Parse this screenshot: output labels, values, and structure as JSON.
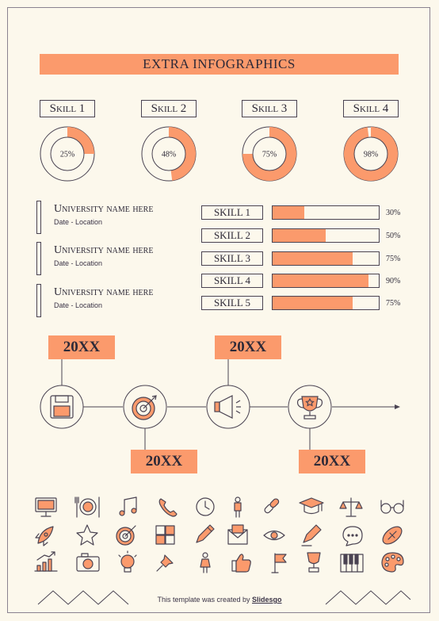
{
  "title": "EXTRA INFOGRAPHICS",
  "accent_color": "#fb9a6c",
  "line_color": "#4a4352",
  "skills": [
    {
      "label": "Skill 1",
      "percent": 25,
      "percent_text": "25%"
    },
    {
      "label": "Skill 2",
      "percent": 48,
      "percent_text": "48%"
    },
    {
      "label": "Skill 3",
      "percent": 75,
      "percent_text": "75%"
    },
    {
      "label": "Skill 4",
      "percent": 98,
      "percent_text": "98%"
    }
  ],
  "education": [
    {
      "name": "University name here",
      "meta": "Date - Location"
    },
    {
      "name": "University name here",
      "meta": "Date - Location"
    },
    {
      "name": "University name here",
      "meta": "Date - Location"
    }
  ],
  "skill_bars": [
    {
      "label": "SKILL 1",
      "percent": 30,
      "percent_text": "30%"
    },
    {
      "label": "SKILL 2",
      "percent": 50,
      "percent_text": "50%"
    },
    {
      "label": "SKILL 3",
      "percent": 75,
      "percent_text": "75%"
    },
    {
      "label": "SKILL 4",
      "percent": 90,
      "percent_text": "90%"
    },
    {
      "label": "SKILL 5",
      "percent": 75,
      "percent_text": "75%"
    }
  ],
  "timeline": [
    {
      "year": "20XX",
      "icon": "floppy-disk-icon"
    },
    {
      "year": "20XX",
      "icon": "target-icon"
    },
    {
      "year": "20XX",
      "icon": "megaphone-icon"
    },
    {
      "year": "20XX",
      "icon": "trophy-icon"
    }
  ],
  "icons": [
    "monitor-icon",
    "cutlery-icon",
    "music-note-icon",
    "phone-icon",
    "clock-icon",
    "person-icon",
    "link-icon",
    "graduation-cap-icon",
    "scale-icon",
    "glasses-icon",
    "rocket-icon",
    "star-icon",
    "target-icon",
    "puzzle-icon",
    "pencil-icon",
    "mail-icon",
    "eye-icon",
    "marker-icon",
    "chat-bubble-icon",
    "football-icon",
    "chart-icon",
    "camera-icon",
    "lightbulb-icon",
    "pushpin-icon",
    "woman-icon",
    "thumbs-up-icon",
    "flag-icon",
    "trophy-icon",
    "piano-icon",
    "palette-icon"
  ],
  "footer": {
    "text": "This template was created by ",
    "brand": "Slidesgo"
  }
}
